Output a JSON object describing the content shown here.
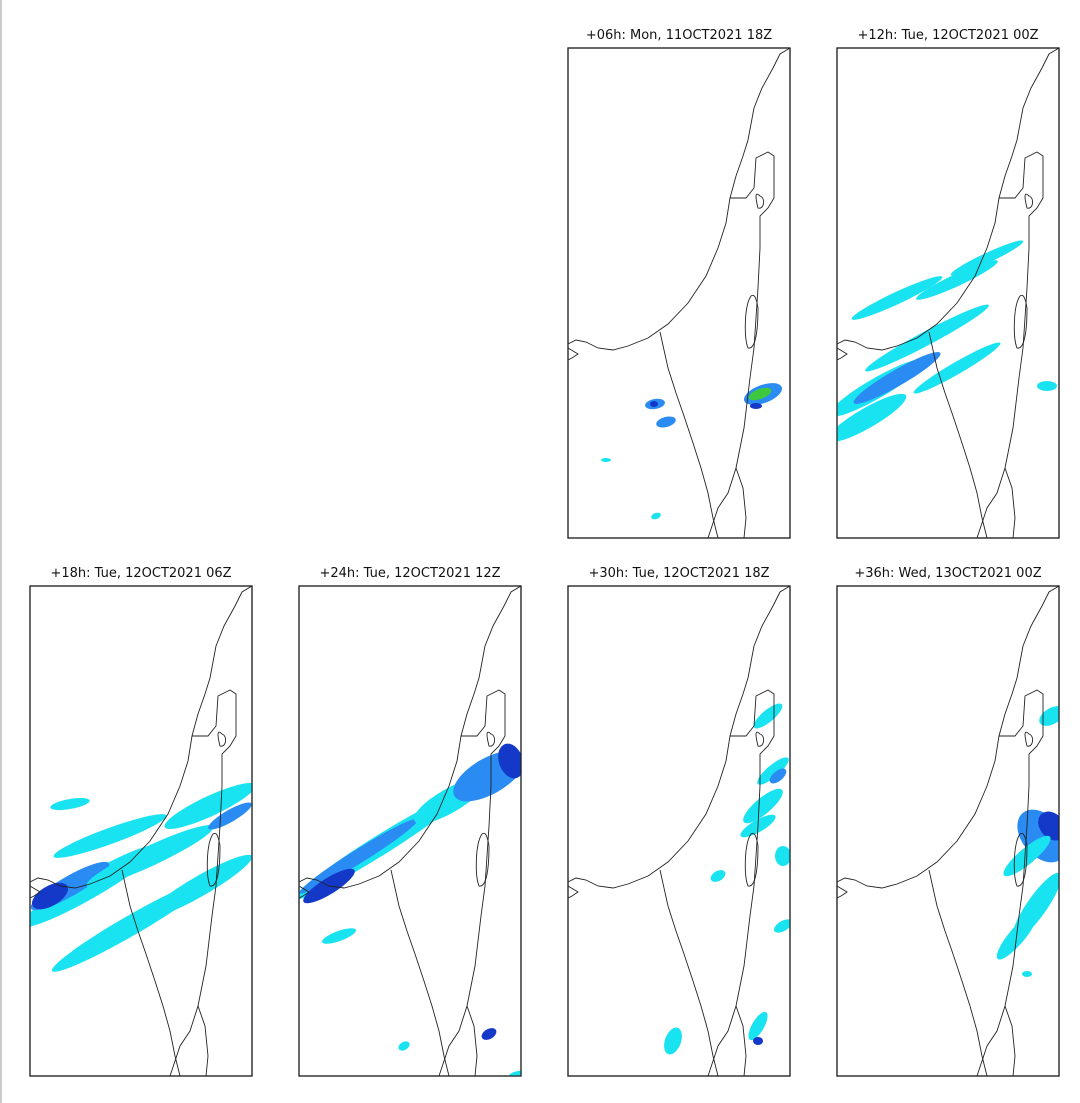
{
  "panels": [
    {
      "title": "+06h: Mon, 11OCT2021 18Z"
    },
    {
      "title": "+12h: Tue, 12OCT2021 00Z"
    },
    {
      "title": "+18h: Tue, 12OCT2021 06Z"
    },
    {
      "title": "+24h: Tue, 12OCT2021 12Z"
    },
    {
      "title": "+30h: Tue, 12OCT2021 18Z"
    },
    {
      "title": "+36h: Wed, 13OCT2021 00Z"
    }
  ]
}
